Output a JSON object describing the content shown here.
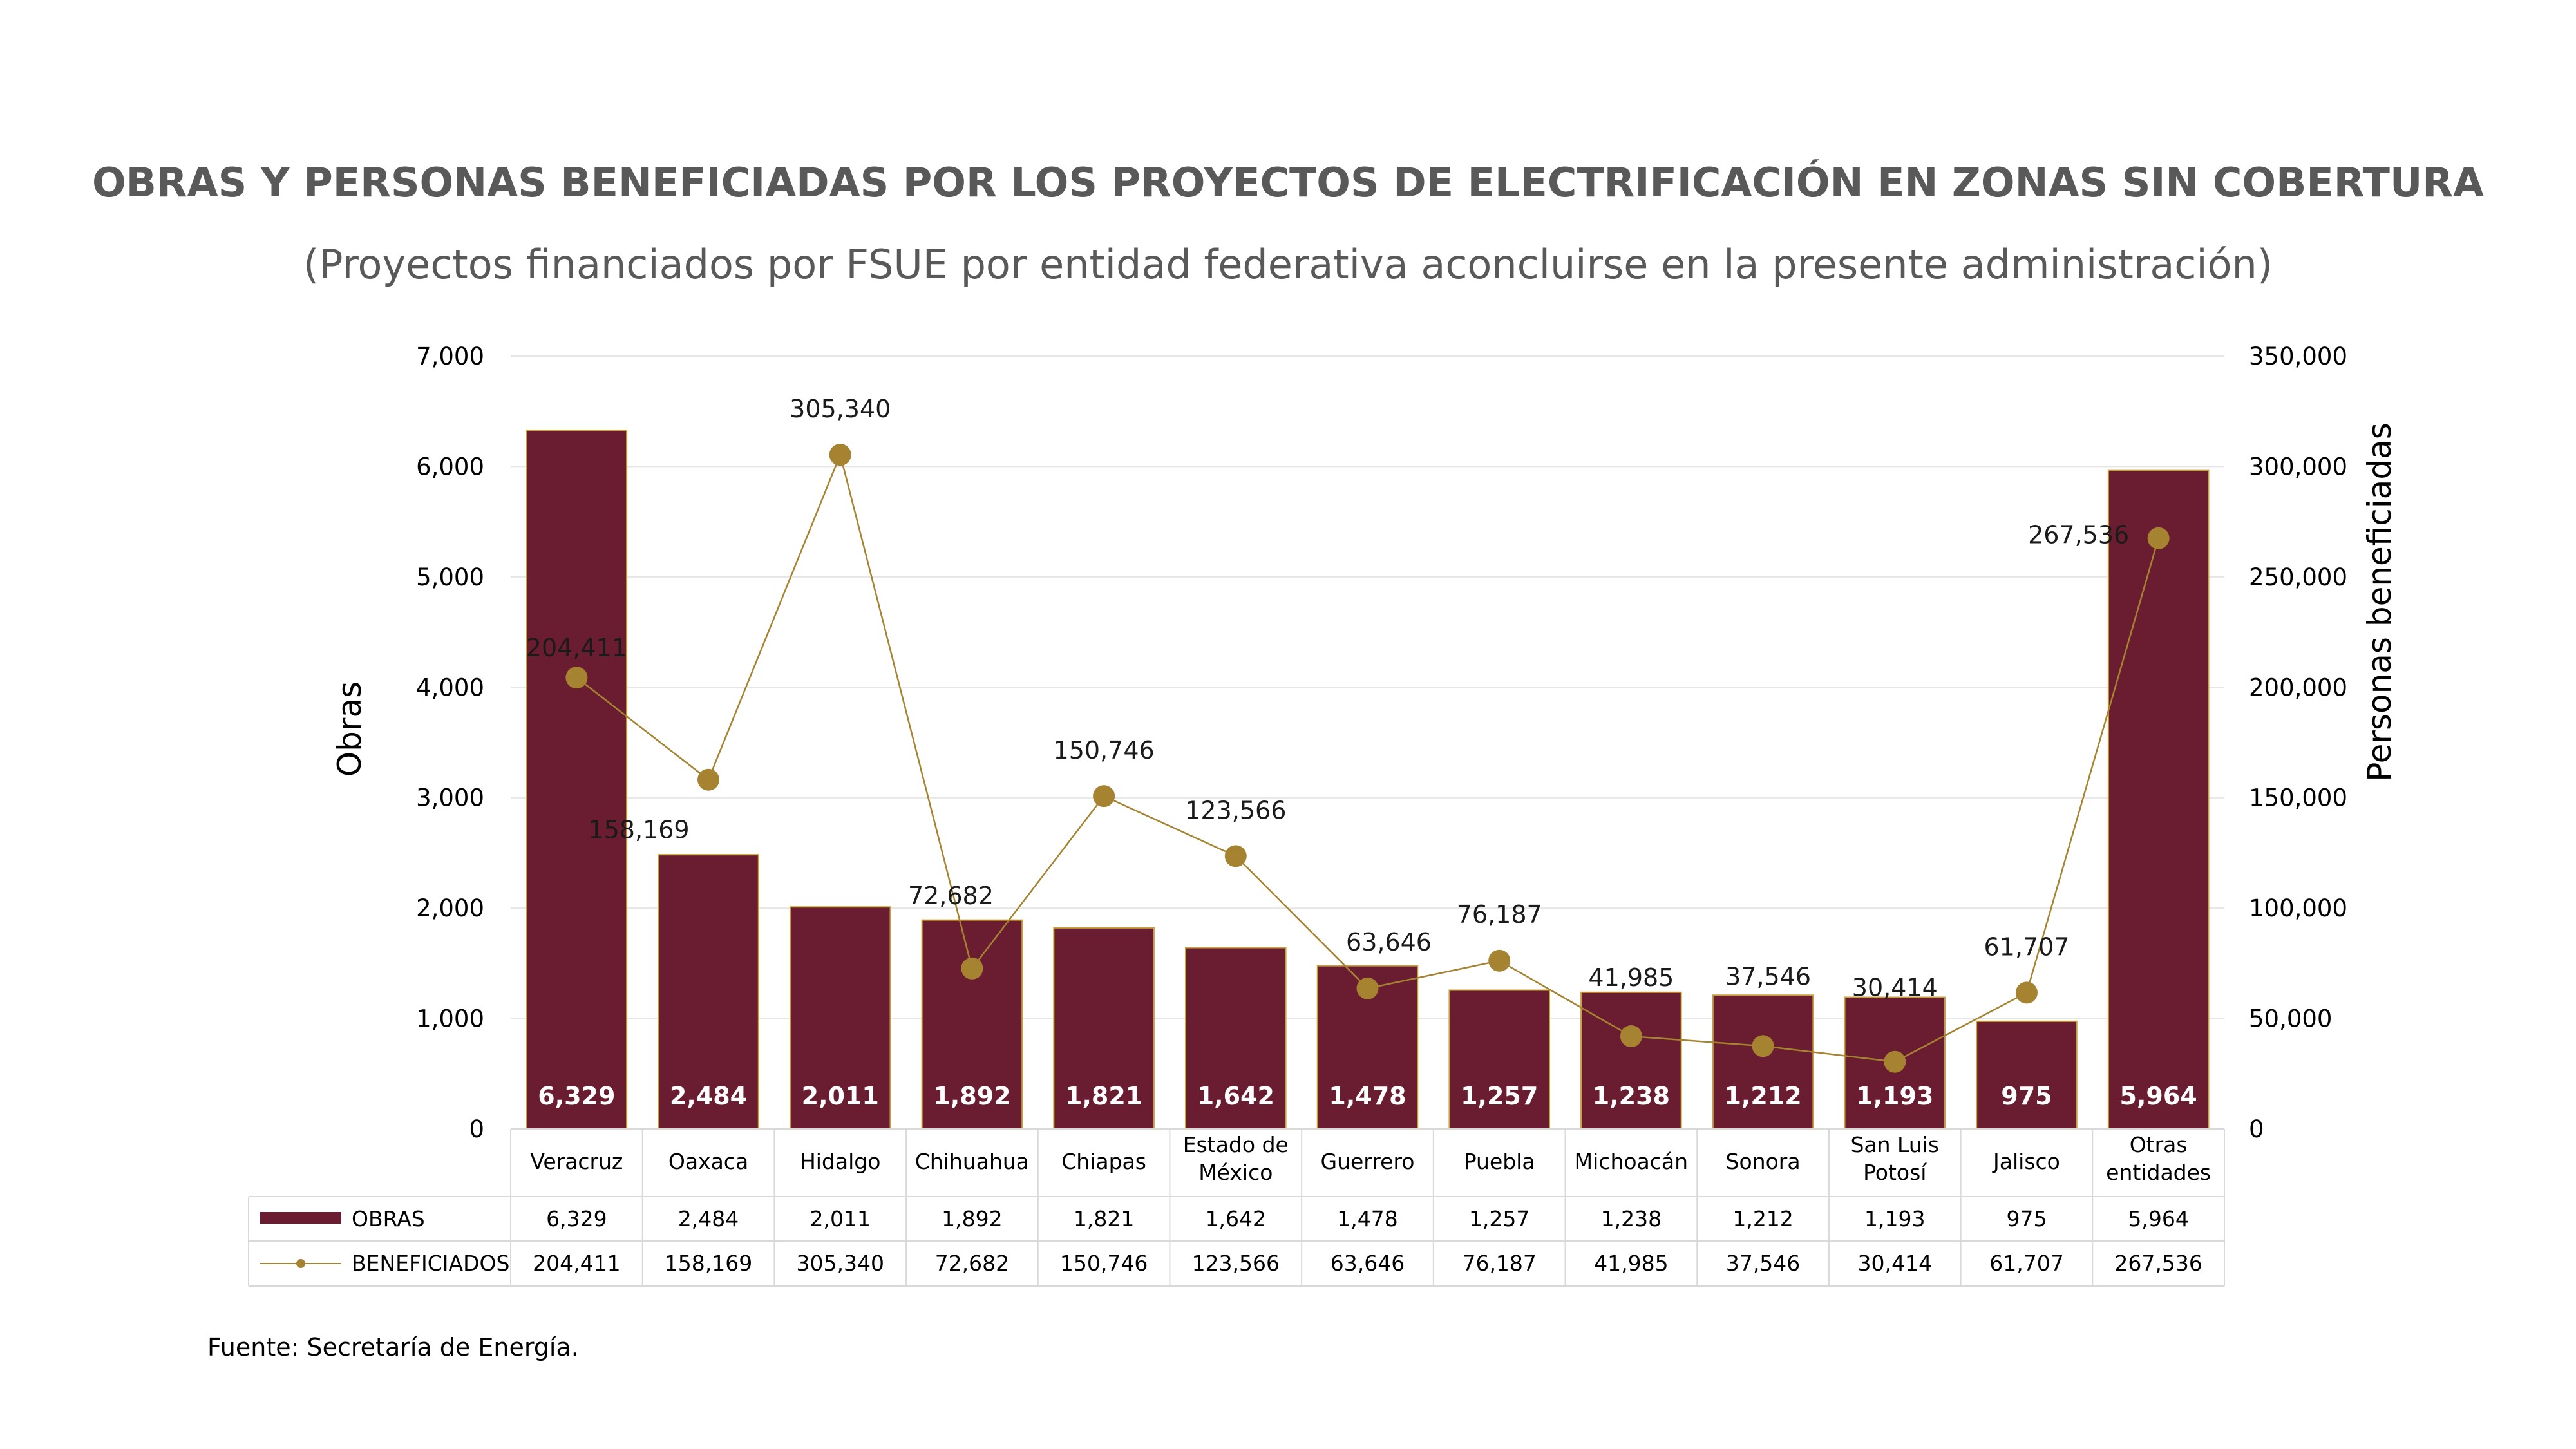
{
  "chart_data": {
    "type": "bar",
    "title": "OBRAS Y PERSONAS BENEFICIADAS POR LOS PROYECTOS DE ELECTRIFICACIÓN EN ZONAS SIN COBERTURA",
    "subtitle": "(Proyectos financiados por FSUE por entidad federativa aconcluirse en la presente administración)",
    "ylabel": "Obras",
    "y2label": "Personas beneficiadas",
    "ylim": [
      0,
      7000
    ],
    "y2lim": [
      0,
      350000
    ],
    "yticks": [
      "0",
      "1,000",
      "2,000",
      "3,000",
      "4,000",
      "5,000",
      "6,000",
      "7,000"
    ],
    "y2ticks": [
      "0",
      "50,000",
      "100,000",
      "150,000",
      "200,000",
      "250,000",
      "300,000",
      "350,000"
    ],
    "grid": true,
    "categories": [
      [
        "Veracruz"
      ],
      [
        "Oaxaca"
      ],
      [
        "Hidalgo"
      ],
      [
        "Chihuahua"
      ],
      [
        "Chiapas"
      ],
      [
        "Estado de",
        "México"
      ],
      [
        "Guerrero"
      ],
      [
        "Puebla"
      ],
      [
        "Michoacán"
      ],
      [
        "Sonora"
      ],
      [
        "San Luis",
        "Potosí"
      ],
      [
        "Jalisco"
      ],
      [
        "Otras",
        "entidades"
      ]
    ],
    "series": [
      {
        "name": "OBRAS",
        "type": "bar",
        "axis": "left",
        "color": "#6a1c31",
        "values": [
          6329,
          2484,
          2011,
          1892,
          1821,
          1642,
          1478,
          1257,
          1238,
          1212,
          1193,
          975,
          5964
        ],
        "labels": [
          "6,329",
          "2,484",
          "2,011",
          "1,892",
          "1,821",
          "1,642",
          "1,478",
          "1,257",
          "1,238",
          "1,212",
          "1,193",
          "975",
          "5,964"
        ]
      },
      {
        "name": "BENEFICIADOS",
        "type": "line",
        "axis": "right",
        "color": "#a58330",
        "values": [
          204411,
          158169,
          305340,
          72682,
          150746,
          123566,
          63646,
          76187,
          41985,
          37546,
          30414,
          61707,
          267536
        ],
        "labels": [
          "204,411",
          "158,169",
          "305,340",
          "72,682",
          "150,746",
          "123,566",
          "63,646",
          "76,187",
          "41,985",
          "37,546",
          "30,414",
          "61,707",
          "267,536"
        ]
      }
    ],
    "source": "Fuente: Secretaría de Energía."
  }
}
